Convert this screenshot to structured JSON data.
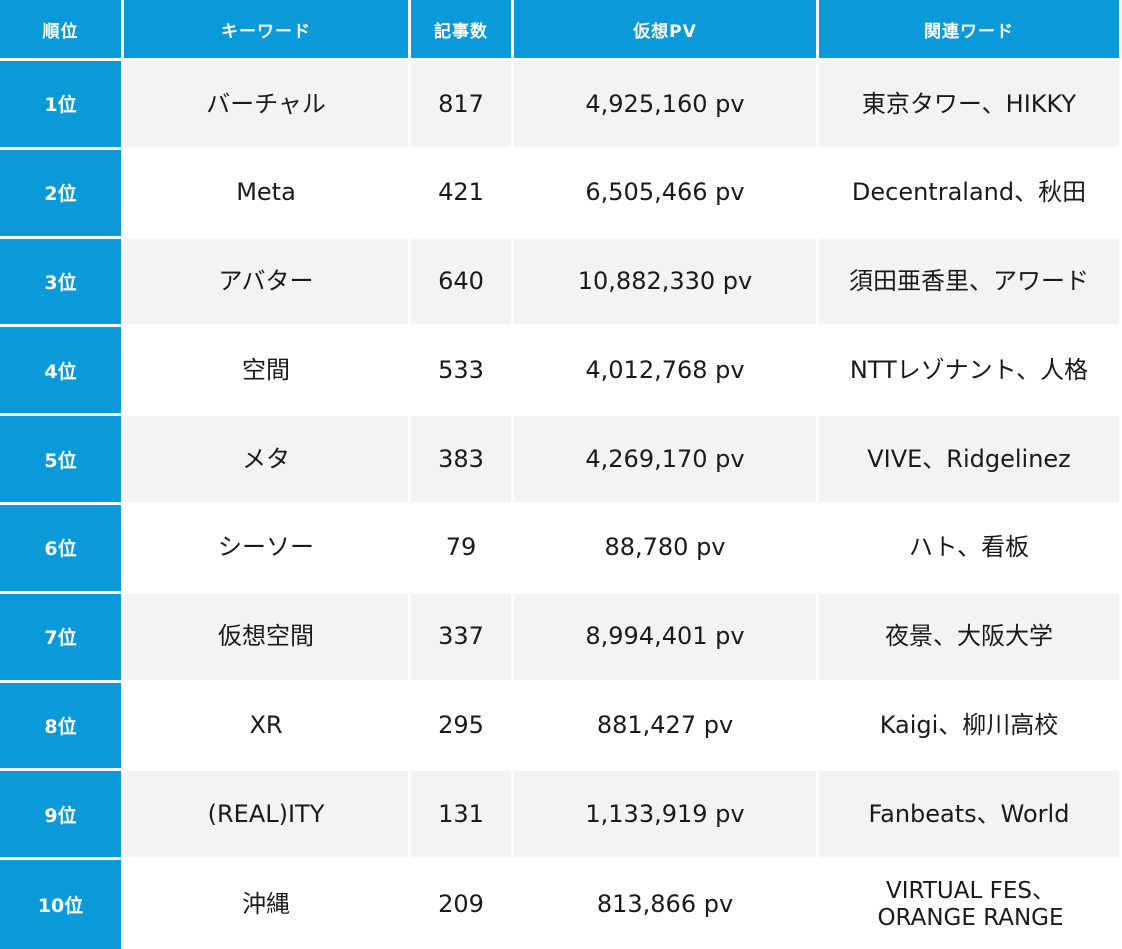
{
  "headers": [
    "順位",
    "キーワード",
    "記事数",
    "仮想PV",
    "関連ワード"
  ],
  "rows": [
    {
      "rank": "1位",
      "keyword": "バーチャル",
      "articles": "817",
      "pv": "4,925,160 pv",
      "related": "東京タワー、HIKKY"
    },
    {
      "rank": "2位",
      "keyword": "Meta",
      "articles": "421",
      "pv": "6,505,466 pv",
      "related": "Decentraland、秋田"
    },
    {
      "rank": "3位",
      "keyword": "アバター",
      "articles": "640",
      "pv": "10,882,330 pv",
      "related": "須田亜香里、アワード"
    },
    {
      "rank": "4位",
      "keyword": "空間",
      "articles": "533",
      "pv": "4,012,768 pv",
      "related": "NTTレゾナント、人格"
    },
    {
      "rank": "5位",
      "keyword": "メタ",
      "articles": "383",
      "pv": "4,269,170 pv",
      "related": "VIVE、Ridgelinez"
    },
    {
      "rank": "6位",
      "keyword": "シーソー",
      "articles": "79",
      "pv": "88,780 pv",
      "related": "ハト、看板"
    },
    {
      "rank": "7位",
      "keyword": "仮想空間",
      "articles": "337",
      "pv": "8,994,401 pv",
      "related": "夜景、大阪大学"
    },
    {
      "rank": "8位",
      "keyword": "XR",
      "articles": "295",
      "pv": "881,427 pv",
      "related": "Kaigi、柳川高校"
    },
    {
      "rank": "9位",
      "keyword": "(REAL)ITY",
      "articles": "131",
      "pv": "1,133,919 pv",
      "related": "Fanbeats、World"
    },
    {
      "rank": "10位",
      "keyword": "沖縄",
      "articles": "209",
      "pv": "813,866 pv",
      "related": "VIRTUAL FES、\nORANGE RANGE"
    }
  ]
}
